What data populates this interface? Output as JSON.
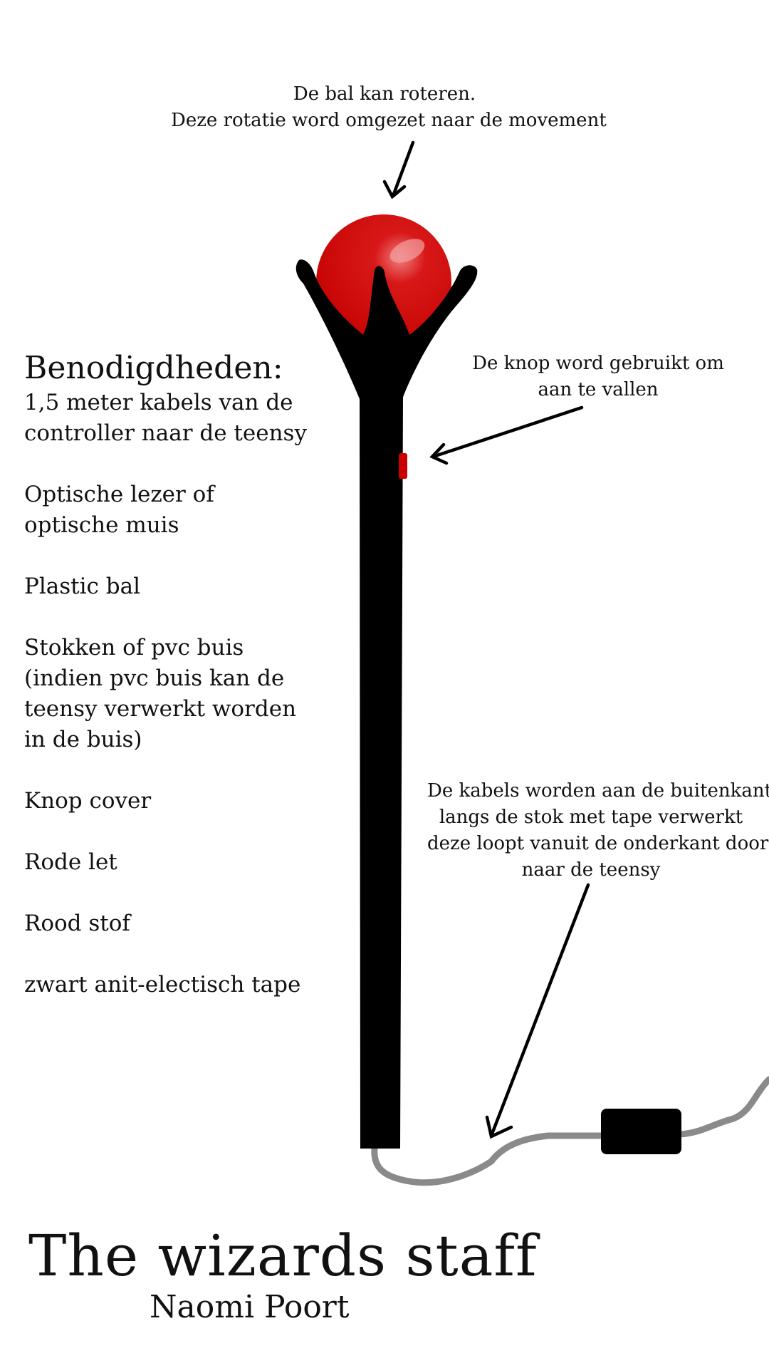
{
  "annotations": {
    "ball": [
      "De bal kan roteren.",
      "Deze rotatie word omgezet naar de movement"
    ],
    "button": [
      "De knop word gebruikt om",
      "aan te vallen"
    ],
    "cables": [
      "De kabels worden aan de buitenkant",
      "langs de stok met tape verwerkt",
      "deze loopt vanuit de onderkant door",
      "naar de teensy"
    ]
  },
  "supplies": {
    "title": "Benodigdheden:",
    "items": [
      [
        "1,5 meter kabels van de",
        "controller naar de teensy"
      ],
      [
        "Optische lezer of",
        "optische muis"
      ],
      [
        "Plastic bal"
      ],
      [
        "Stokken of  pvc buis",
        "(indien pvc buis kan de",
        "teensy verwerkt worden",
        "in de buis)"
      ],
      [
        "Knop cover"
      ],
      [
        "Rode let"
      ],
      [
        "Rood stof"
      ],
      [
        "zwart anit-electisch tape"
      ]
    ]
  },
  "title": {
    "main": "The wizards staff",
    "author": "Naomi Poort"
  },
  "colors": {
    "ball": "#cc0000",
    "staff": "#000000",
    "cable": "#8a8a8a",
    "button": "#cc0000",
    "background": "#ffffff"
  }
}
